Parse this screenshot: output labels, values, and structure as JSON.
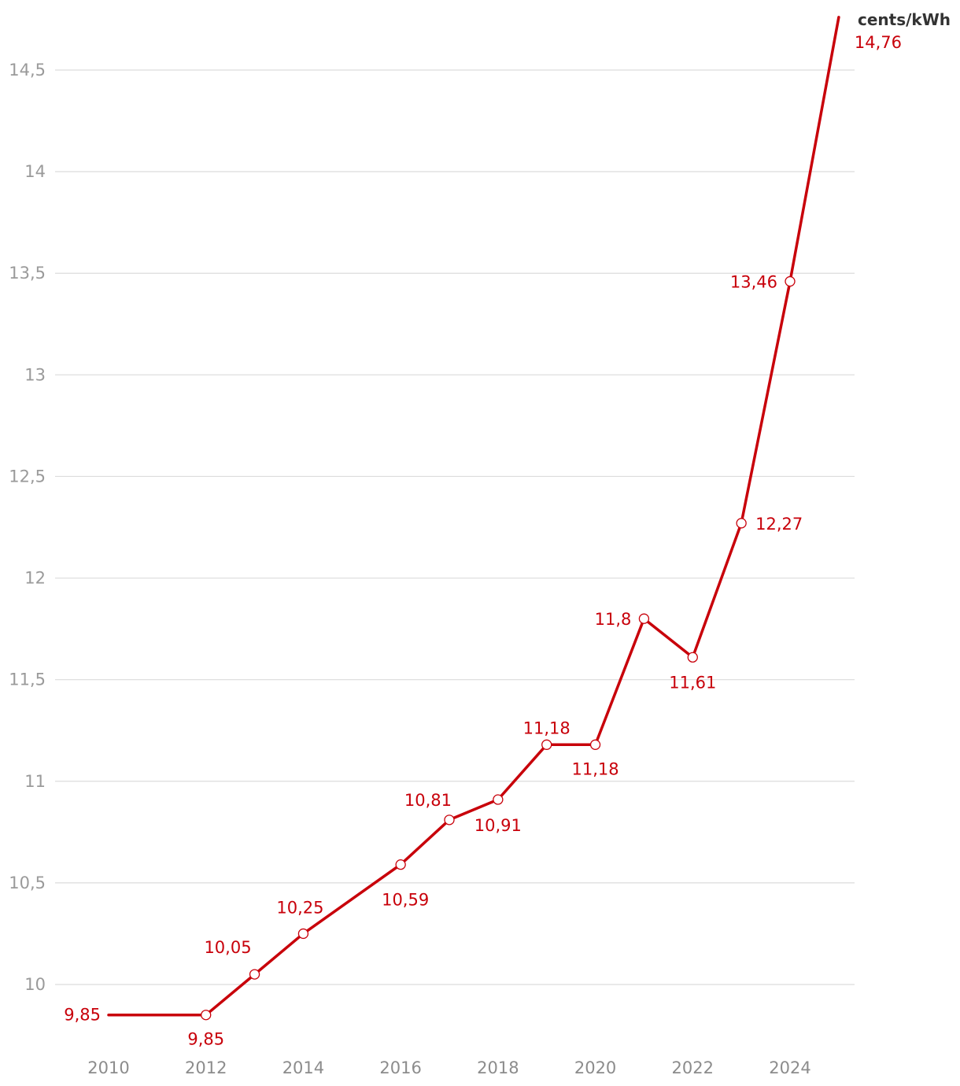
{
  "chart_data": {
    "type": "line",
    "unit_label": "cents/kWh",
    "x_ticks": [
      "2010",
      "2012",
      "2014",
      "2016",
      "2018",
      "2020",
      "2022",
      "2024"
    ],
    "y_ticks": [
      "10",
      "10,5",
      "11",
      "11,5",
      "12",
      "12,5",
      "13",
      "13,5",
      "14",
      "14,5"
    ],
    "xlim": [
      2010,
      2025
    ],
    "ylim": [
      9.85,
      14.76
    ],
    "grid": true,
    "series": [
      {
        "color": "#c8000a",
        "points": [
          {
            "x": 2010,
            "y": 9.85,
            "label": "",
            "marker": false
          },
          {
            "x": 2012,
            "y": 9.85,
            "label": "9,85",
            "marker": true
          },
          {
            "x": 2013,
            "y": 10.05,
            "label": "10,05",
            "marker": true
          },
          {
            "x": 2014,
            "y": 10.25,
            "label": "10,25",
            "marker": true
          },
          {
            "x": 2016,
            "y": 10.59,
            "label": "10,59",
            "marker": true
          },
          {
            "x": 2017,
            "y": 10.81,
            "label": "10,81",
            "marker": true
          },
          {
            "x": 2018,
            "y": 10.91,
            "label": "10,91",
            "marker": true
          },
          {
            "x": 2019,
            "y": 11.18,
            "label": "11,18",
            "marker": true
          },
          {
            "x": 2020,
            "y": 11.18,
            "label": "11,18",
            "marker": true
          },
          {
            "x": 2021,
            "y": 11.8,
            "label": "11,8",
            "marker": true
          },
          {
            "x": 2022,
            "y": 11.61,
            "label": "11,61",
            "marker": true
          },
          {
            "x": 2023,
            "y": 12.27,
            "label": "12,27",
            "marker": true
          },
          {
            "x": 2024,
            "y": 13.46,
            "label": "13,46",
            "marker": true
          },
          {
            "x": 2025,
            "y": 14.76,
            "label": "14,76",
            "marker": false
          }
        ],
        "start_label": "9,85"
      }
    ]
  }
}
